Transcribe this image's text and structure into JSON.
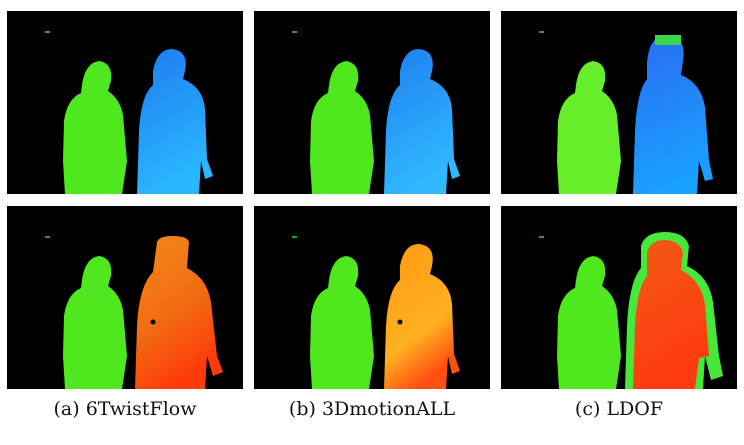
{
  "figure": {
    "captions": [
      {
        "label": "(a)",
        "name": "6TwistFlow"
      },
      {
        "label": "(b)",
        "name": "3DmotionALL"
      },
      {
        "label": "(c)",
        "name": "LDOF"
      }
    ],
    "rows": [
      {
        "colormap": "blue",
        "colors": {
          "left_person": "#4fe81e",
          "right_person": "#1a8cf0",
          "right_tint": "#2bb3ff",
          "edge": "#7df23a"
        }
      },
      {
        "colormap": "orange",
        "colors": {
          "left_person": "#4fe81e",
          "right_person": "#f26a12",
          "right_tint": "#ffb020",
          "edge": "#46e83a"
        }
      }
    ]
  }
}
